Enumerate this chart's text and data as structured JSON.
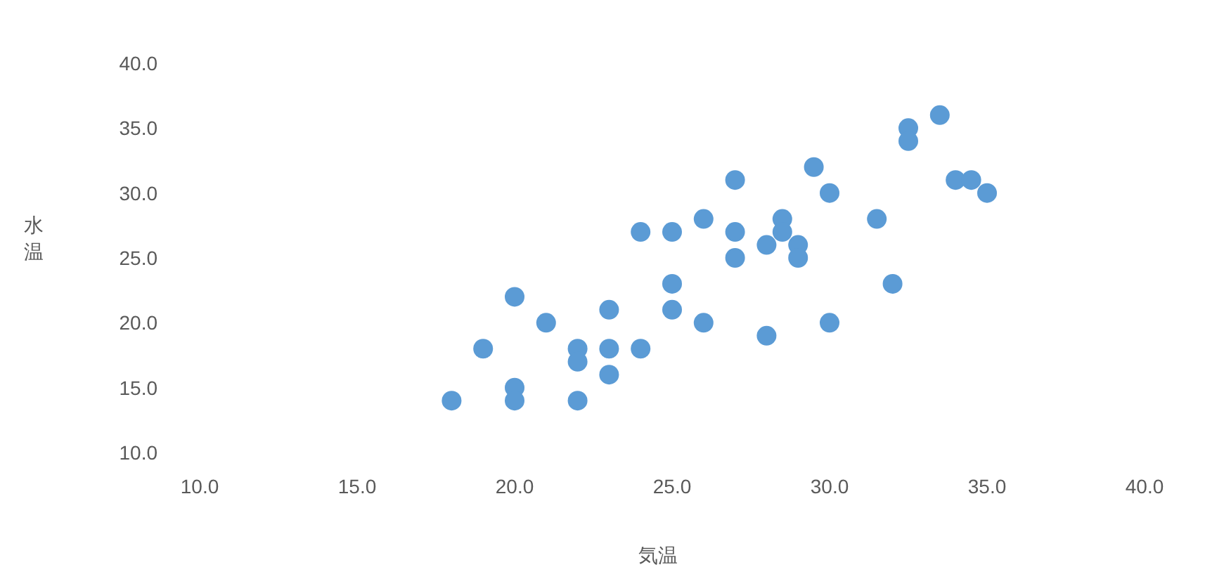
{
  "chart_data": {
    "type": "scatter",
    "xlabel": "気温",
    "ylabel": "水温",
    "marker": "circle",
    "grid": false,
    "x": [
      18,
      19,
      20,
      20,
      20,
      21,
      22,
      22,
      22,
      23,
      23,
      23,
      24,
      24,
      25,
      25,
      25,
      26,
      26,
      27,
      27,
      27,
      28,
      28,
      28.5,
      28.5,
      29,
      29,
      29.5,
      30,
      30,
      31.5,
      32,
      32.5,
      32.5,
      33.5,
      34,
      34.5,
      35
    ],
    "series": [
      {
        "color": "#5b9bd5",
        "values": [
          14,
          18,
          22,
          15,
          14,
          20,
          18,
          17,
          14,
          21,
          18,
          16,
          18,
          27,
          27,
          23,
          21,
          20,
          28,
          31,
          27,
          25,
          19,
          26,
          28,
          27,
          26,
          25,
          32,
          30,
          20,
          28,
          23,
          35,
          34,
          36,
          31,
          31,
          30
        ]
      }
    ],
    "xlim": [
      10,
      40
    ],
    "ylim": [
      10,
      40
    ],
    "xticks": [
      {
        "value": 10,
        "label": "10.0"
      },
      {
        "value": 15,
        "label": "15.0"
      },
      {
        "value": 20,
        "label": "20.0"
      },
      {
        "value": 25,
        "label": "25.0"
      },
      {
        "value": 30,
        "label": "30.0"
      },
      {
        "value": 35,
        "label": "35.0"
      },
      {
        "value": 40,
        "label": "40.0"
      }
    ],
    "yticks": [
      {
        "value": 10,
        "label": "10.0"
      },
      {
        "value": 15,
        "label": "15.0"
      },
      {
        "value": 20,
        "label": "20.0"
      },
      {
        "value": 25,
        "label": "25.0"
      },
      {
        "value": 30,
        "label": "30.0"
      },
      {
        "value": 35,
        "label": "35.0"
      },
      {
        "value": 40,
        "label": "40.0"
      }
    ]
  }
}
